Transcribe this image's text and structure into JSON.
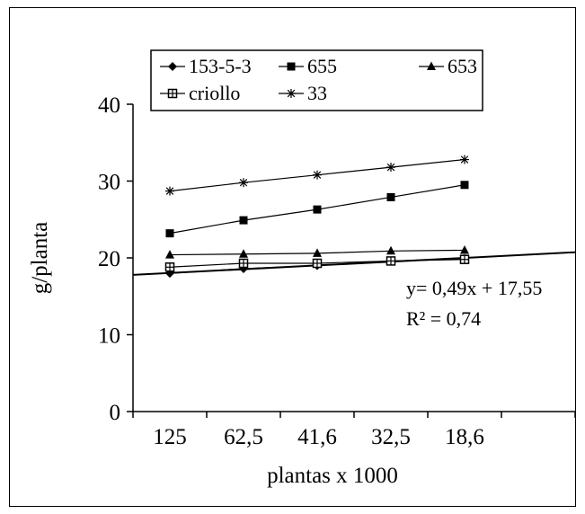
{
  "chart_data": {
    "type": "line",
    "categories": [
      "125",
      "62,5",
      "41,6",
      "32,5",
      "18,6"
    ],
    "xlabel": "plantas x 1000",
    "ylabel": "g/planta",
    "ylim": [
      0,
      40
    ],
    "yticks": [
      0,
      10,
      20,
      30,
      40
    ],
    "grid": false,
    "legend_position": "top",
    "series": [
      {
        "name": "153-5-3",
        "marker": "diamond",
        "values": [
          18.0,
          18.6,
          19.0,
          19.6,
          19.9
        ]
      },
      {
        "name": "655",
        "marker": "square",
        "values": [
          23.2,
          24.9,
          26.3,
          27.9,
          29.5
        ]
      },
      {
        "name": "653",
        "marker": "triangle",
        "values": [
          20.4,
          20.5,
          20.6,
          20.9,
          21.0
        ]
      },
      {
        "name": "criollo",
        "marker": "crossed-square",
        "values": [
          18.8,
          19.3,
          19.3,
          19.6,
          19.8
        ]
      },
      {
        "name": "33",
        "marker": "asterisk",
        "values": [
          28.7,
          29.8,
          30.8,
          31.8,
          32.8
        ]
      }
    ],
    "trendline": {
      "x_start": 0.5,
      "x_end": 6.5,
      "slope": 0.49,
      "intercept": 17.55
    },
    "annotations": {
      "equation": "y= 0,49x + 17,55",
      "r_squared": "R² = 0,74"
    },
    "colors": {
      "line": "#000000",
      "background": "#ffffff"
    }
  }
}
